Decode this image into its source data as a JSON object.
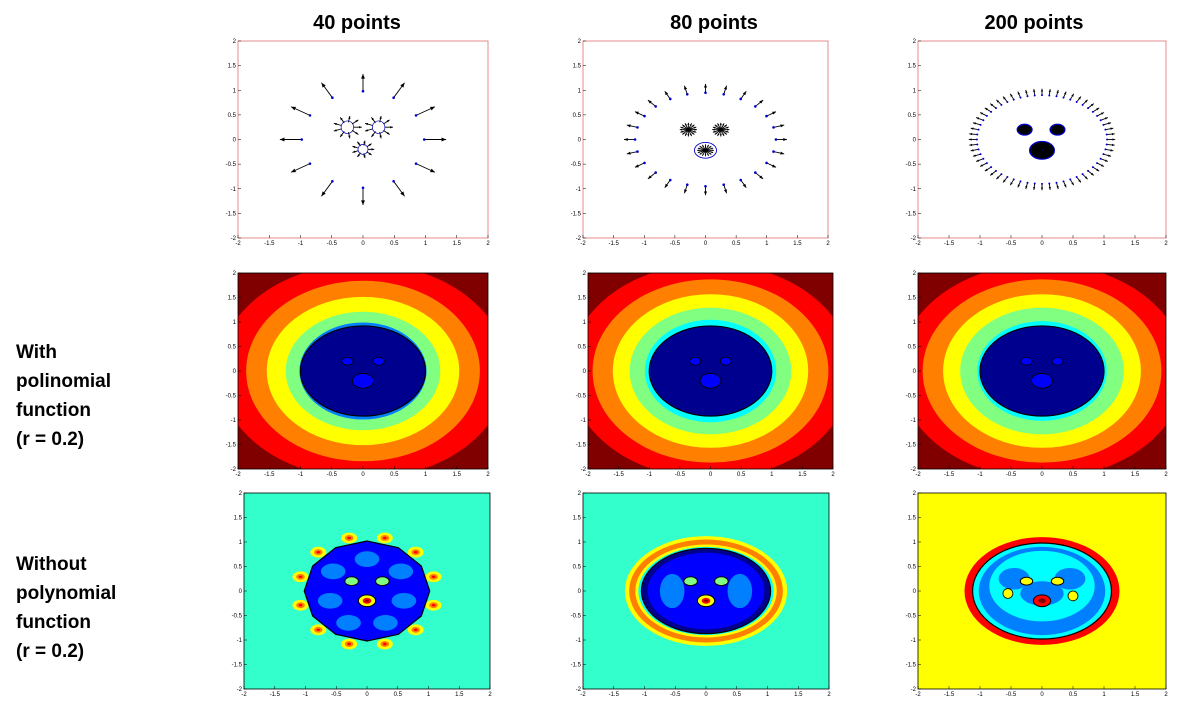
{
  "columns": [
    {
      "title": "40 points",
      "n_points": 40
    },
    {
      "title": "80 points",
      "n_points": 80
    },
    {
      "title": "200 points",
      "n_points": 200
    }
  ],
  "rows": [
    {
      "label_lines": []
    },
    {
      "label_lines": [
        "With",
        "polinomial",
        "function",
        "(r = 0.2)"
      ]
    },
    {
      "label_lines": [
        "Without",
        "polynomial",
        "function",
        "(r = 0.2)"
      ]
    }
  ],
  "axis": {
    "xlim": [
      -2,
      2
    ],
    "ylim": [
      -2,
      2
    ],
    "xticks": [
      "-2",
      "-1.5",
      "-1",
      "-0.5",
      "0",
      "0.5",
      "1",
      "1.5",
      "2"
    ],
    "yticks": [
      "2",
      "1.5",
      "1",
      "0.5",
      "0",
      "-0.5",
      "-1",
      "-1.5",
      "-2"
    ]
  },
  "colors": {
    "contour_levels": [
      "#00008f",
      "#0000ff",
      "#0080ff",
      "#00ffff",
      "#80ff80",
      "#ffff00",
      "#ff8000",
      "#ff0000",
      "#800000"
    ],
    "arrow": "#000000",
    "point": "#0000cc",
    "nopoly_bg_40": "#33ffcc",
    "nopoly_bg_80": "#33ffcc",
    "nopoly_bg_200": "#ffff00"
  }
}
